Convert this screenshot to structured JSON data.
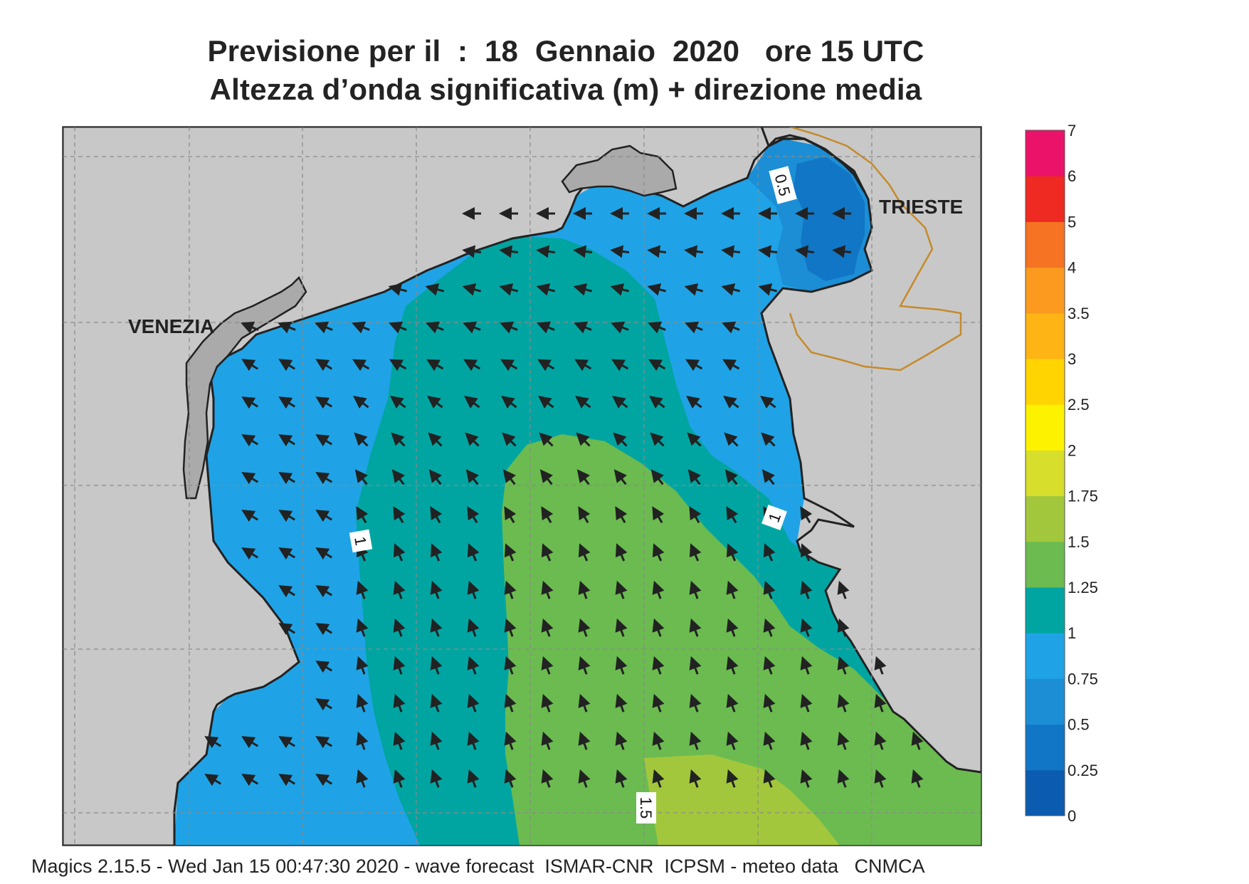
{
  "header": {
    "title_line1": "Previsione per il  :  18  Gennaio  2020   ore 15 UTC",
    "title_line2": "Altezza d’onda significativa (m) + direzione media"
  },
  "map": {
    "cities": [
      {
        "name": "VENEZIA"
      },
      {
        "name": "TRIESTE"
      }
    ],
    "contour_labels": [
      "0.5",
      "1",
      "1",
      "1.5"
    ],
    "land_color": "#c8c8c8"
  },
  "legend": {
    "levels": [
      "0",
      "0.25",
      "0.5",
      "0.75",
      "1",
      "1.25",
      "1.5",
      "1.75",
      "2",
      "2.5",
      "3",
      "3.5",
      "4",
      "5",
      "6",
      "7"
    ],
    "colors": [
      "#0b5cb0",
      "#1176c5",
      "#1b8ed6",
      "#1fa3e6",
      "#00a5a2",
      "#6bbb50",
      "#a3c73c",
      "#d7de2b",
      "#fdf200",
      "#ffd400",
      "#fdb414",
      "#fb9a1e",
      "#f57322",
      "#ee2a23",
      "#eb1269"
    ]
  },
  "footer": {
    "text": "Magics 2.15.5 - Wed Jan 15 00:47:30 2020 - wave forecast  ISMAR-CNR  ICPSM - meteo data   CNMCA"
  }
}
